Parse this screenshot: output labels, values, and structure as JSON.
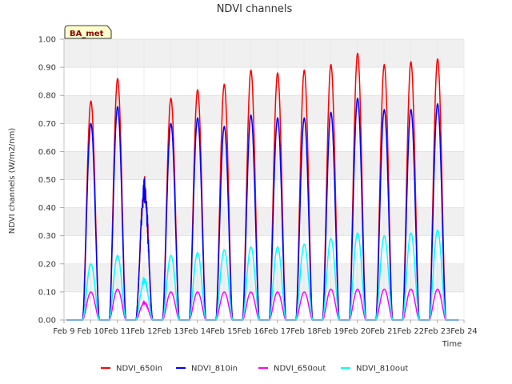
{
  "chart_data": {
    "type": "line",
    "title": "NDVI channels",
    "xlabel": "Time",
    "ylabel": "NDVI channels (W/m2/nm)",
    "ylim": [
      0,
      1.0
    ],
    "xlim": [
      9,
      24
    ],
    "grid": true,
    "legend_position": "bottom",
    "badge": "BA_met",
    "y_ticks": [
      "0.00",
      "0.10",
      "0.20",
      "0.30",
      "0.40",
      "0.50",
      "0.60",
      "0.70",
      "0.80",
      "0.90",
      "1.00"
    ],
    "x_ticks": [
      "Feb 9",
      "Feb 10",
      "Feb 11",
      "Feb 12",
      "Feb 13",
      "Feb 14",
      "Feb 15",
      "Feb 16",
      "Feb 17",
      "Feb 18",
      "Feb 19",
      "Feb 20",
      "Feb 21",
      "Feb 22",
      "Feb 23",
      "Feb 24"
    ],
    "days": [
      10,
      11,
      12,
      13,
      14,
      15,
      16,
      17,
      18,
      19,
      20,
      21,
      22,
      23
    ],
    "series": [
      {
        "name": "NDVI_650in",
        "color": "#ff0000",
        "daily_peaks": [
          0.78,
          0.86,
          0.53,
          0.79,
          0.82,
          0.84,
          0.89,
          0.88,
          0.89,
          0.91,
          0.95,
          0.91,
          0.92,
          0.93
        ]
      },
      {
        "name": "NDVI_810in",
        "color": "#0000ff",
        "daily_peaks": [
          0.7,
          0.76,
          0.52,
          0.7,
          0.72,
          0.69,
          0.73,
          0.72,
          0.72,
          0.74,
          0.79,
          0.75,
          0.75,
          0.77
        ]
      },
      {
        "name": "NDVI_650out",
        "color": "#ff00ff",
        "daily_peaks": [
          0.1,
          0.11,
          0.07,
          0.1,
          0.1,
          0.1,
          0.1,
          0.1,
          0.1,
          0.11,
          0.11,
          0.11,
          0.11,
          0.11
        ]
      },
      {
        "name": "NDVI_810out",
        "color": "#00ffff",
        "daily_peaks": [
          0.2,
          0.23,
          0.16,
          0.23,
          0.24,
          0.25,
          0.26,
          0.26,
          0.27,
          0.29,
          0.31,
          0.3,
          0.31,
          0.32
        ]
      }
    ]
  }
}
